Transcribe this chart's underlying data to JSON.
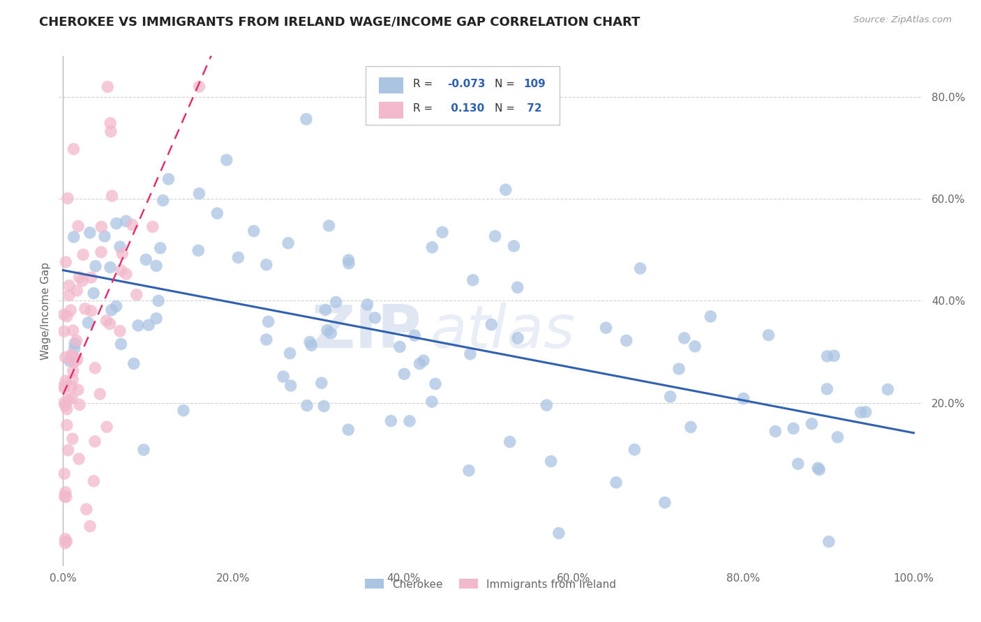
{
  "title": "CHEROKEE VS IMMIGRANTS FROM IRELAND WAGE/INCOME GAP CORRELATION CHART",
  "source": "Source: ZipAtlas.com",
  "ylabel": "Wage/Income Gap",
  "xlim": [
    -0.005,
    1.01
  ],
  "ylim": [
    -0.12,
    0.88
  ],
  "x_tick_labels": [
    "0.0%",
    "20.0%",
    "40.0%",
    "60.0%",
    "80.0%",
    "100.0%"
  ],
  "x_tick_vals": [
    0.0,
    0.2,
    0.4,
    0.6,
    0.8,
    1.0
  ],
  "y_tick_labels": [
    "20.0%",
    "40.0%",
    "60.0%",
    "80.0%"
  ],
  "y_tick_vals": [
    0.2,
    0.4,
    0.6,
    0.8
  ],
  "legend_labels": [
    "Cherokee",
    "Immigrants from Ireland"
  ],
  "cherokee_color": "#aac4e2",
  "ireland_color": "#f2b8cc",
  "cherokee_line_color": "#3060b0",
  "ireland_line_color": "#e03070",
  "ireland_line_style": "--",
  "R_cherokee": -0.073,
  "N_cherokee": 109,
  "R_ireland": 0.13,
  "N_ireland": 72,
  "background_color": "#ffffff",
  "grid_color": "#cccccc",
  "watermark_zip": "ZIP",
  "watermark_atlas": "atlas",
  "title_color": "#222222",
  "legend_text_color": "#3060b0",
  "axis_label_color": "#666666"
}
